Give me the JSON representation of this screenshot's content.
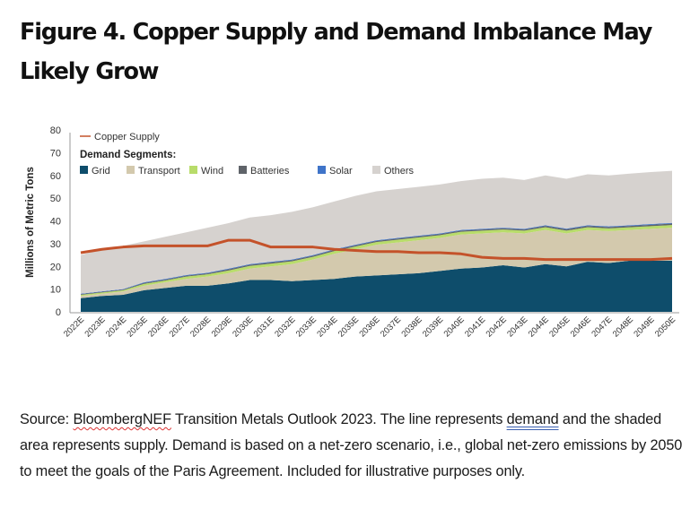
{
  "title": "Figure 4. Copper Supply and Demand Imbalance May Likely Grow",
  "caption": {
    "prefix": "Source: ",
    "source_name": "BloombergNEF",
    "part2": " Transition Metals Outlook 2023. The line represents ",
    "demand_word": "demand",
    "part3": " and the shaded area represents supply. Demand is based on a net-zero scenario, i.e., global net-zero emissions by 2050 to meet the goals of the Paris Agreement. Included for illustrative purposes only."
  },
  "chart_data": {
    "type": "area",
    "title": "",
    "xlabel": "",
    "ylabel": "Millions of Metric Tons",
    "ylim": [
      0,
      80
    ],
    "yticks": [
      0,
      10,
      20,
      30,
      40,
      50,
      60,
      70,
      80
    ],
    "grid": false,
    "legend": {
      "placement": "top-left",
      "line_label": "Copper Supply",
      "segments_heading": "Demand Segments:"
    },
    "categories": [
      "2022E",
      "2023E",
      "2024E",
      "2025E",
      "2026E",
      "2027E",
      "2028E",
      "2029E",
      "2030E",
      "2031E",
      "2032E",
      "2033E",
      "2034E",
      "2035E",
      "2036E",
      "2037E",
      "2038E",
      "2039E",
      "2040E",
      "2041E",
      "2042E",
      "2043E",
      "2044E",
      "2045E",
      "2046E",
      "2047E",
      "2048E",
      "2049E",
      "2050E"
    ],
    "stacked": true,
    "series": [
      {
        "name": "Grid",
        "kind": "area",
        "color": "#0e4d6b",
        "values": [
          6,
          7,
          7.5,
          9.5,
          10.5,
          11.5,
          11.5,
          12.5,
          14,
          14,
          13.5,
          14,
          14.5,
          15.5,
          16,
          16.5,
          17,
          18,
          19,
          19.5,
          20.5,
          19.5,
          21,
          20,
          22,
          21.5,
          22.5,
          22.5,
          22.5
        ]
      },
      {
        "name": "Transport",
        "kind": "area",
        "color": "#d3c9ad",
        "values": [
          1,
          1,
          1.5,
          2,
          2.5,
          3,
          4,
          4.5,
          5,
          6,
          7.5,
          9,
          11,
          12,
          13.5,
          14,
          14.5,
          14.5,
          15,
          15,
          14.5,
          15,
          15,
          14.5,
          14,
          14,
          13.5,
          14,
          14.5
        ]
      },
      {
        "name": "Wind",
        "kind": "area",
        "color": "#b8dc6a",
        "values": [
          0.5,
          0.5,
          0.5,
          0.8,
          0.8,
          1,
          1,
          1.2,
          1.2,
          1.2,
          1.2,
          1.2,
          1.2,
          1.2,
          1.2,
          1.2,
          1.2,
          1.2,
          1.2,
          1.2,
          1.2,
          1.2,
          1.2,
          1.2,
          1.2,
          1.2,
          1.2,
          1.2,
          1.2
        ]
      },
      {
        "name": "Batteries",
        "kind": "area",
        "color": "#5f6369",
        "values": [
          0.3,
          0.3,
          0.3,
          0.4,
          0.4,
          0.4,
          0.4,
          0.5,
          0.5,
          0.5,
          0.5,
          0.5,
          0.5,
          0.5,
          0.5,
          0.5,
          0.5,
          0.5,
          0.5,
          0.5,
          0.5,
          0.5,
          0.6,
          0.6,
          0.6,
          0.6,
          0.6,
          0.6,
          0.6
        ]
      },
      {
        "name": "Solar",
        "kind": "area",
        "color": "#3f74c9",
        "values": [
          0.2,
          0.2,
          0.2,
          0.3,
          0.3,
          0.3,
          0.3,
          0.3,
          0.3,
          0.3,
          0.3,
          0.3,
          0.3,
          0.3,
          0.3,
          0.3,
          0.3,
          0.3,
          0.3,
          0.3,
          0.3,
          0.3,
          0.3,
          0.3,
          0.3,
          0.3,
          0.3,
          0.3,
          0.3
        ]
      },
      {
        "name": "Others",
        "kind": "area",
        "color": "#d6d2cf",
        "values": [
          17,
          18.5,
          19,
          18,
          18.5,
          18.8,
          19.8,
          20,
          20.5,
          20.5,
          21,
          21,
          21,
          21.5,
          21.5,
          21.5,
          21.5,
          21.5,
          21.5,
          22,
          22,
          21.5,
          21.9,
          21.9,
          22.4,
          22.4,
          22.7,
          22.9,
          22.9
        ]
      },
      {
        "name": "Copper Supply",
        "kind": "line",
        "color": "#c4522a",
        "values": [
          26,
          27.5,
          28.5,
          29,
          29,
          29,
          29,
          31.5,
          31.5,
          28.5,
          28.5,
          28.5,
          27.5,
          27,
          26.5,
          26.5,
          26,
          26,
          25.5,
          24,
          23.5,
          23.5,
          23,
          23,
          23,
          23,
          23,
          23,
          23.5
        ]
      }
    ]
  }
}
